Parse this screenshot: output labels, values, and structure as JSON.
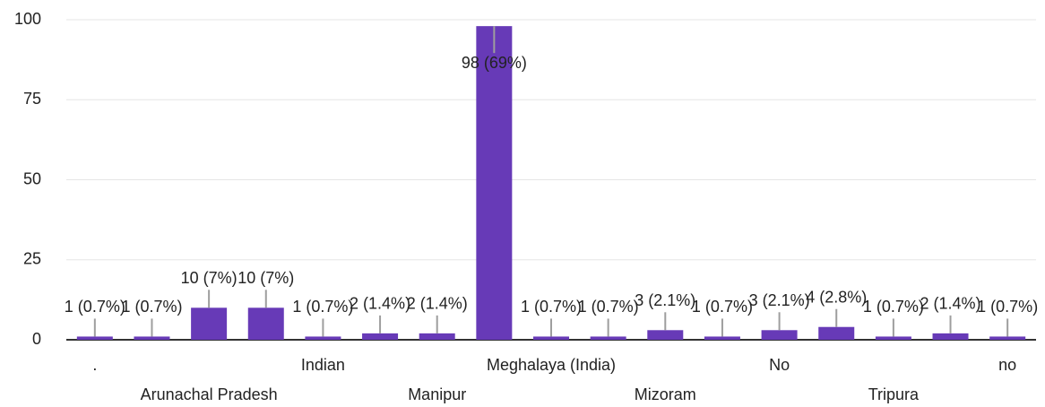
{
  "chart_data": {
    "type": "bar",
    "categories": [
      ".",
      null,
      "Arunachal Pradesh",
      null,
      "Indian",
      null,
      "Manipur",
      null,
      "Meghalaya (India)",
      null,
      "Mizoram",
      null,
      "No",
      null,
      "Tripura",
      null,
      "no"
    ],
    "values": [
      1,
      1,
      10,
      10,
      1,
      2,
      2,
      98,
      1,
      1,
      3,
      1,
      3,
      4,
      1,
      2,
      1
    ],
    "value_labels": [
      "1 (0.7%)",
      "1 (0.7%)",
      "10 (7%)",
      "10 (7%)",
      "1 (0.7%)",
      "2 (1.4%)",
      "2 (1.4%)",
      "98 (69%)",
      "1 (0.7%)",
      "1 (0.7%)",
      "3 (2.1%)",
      "1 (0.7%)",
      "3 (2.1%)",
      "4 (2.8%)",
      "1 (0.7%)",
      "2 (1.4%)",
      "1 (0.7%)"
    ],
    "color": "#673ab7",
    "ylim": [
      0,
      100
    ],
    "yticks": [
      0,
      25,
      50,
      75,
      100
    ],
    "grid": true
  }
}
